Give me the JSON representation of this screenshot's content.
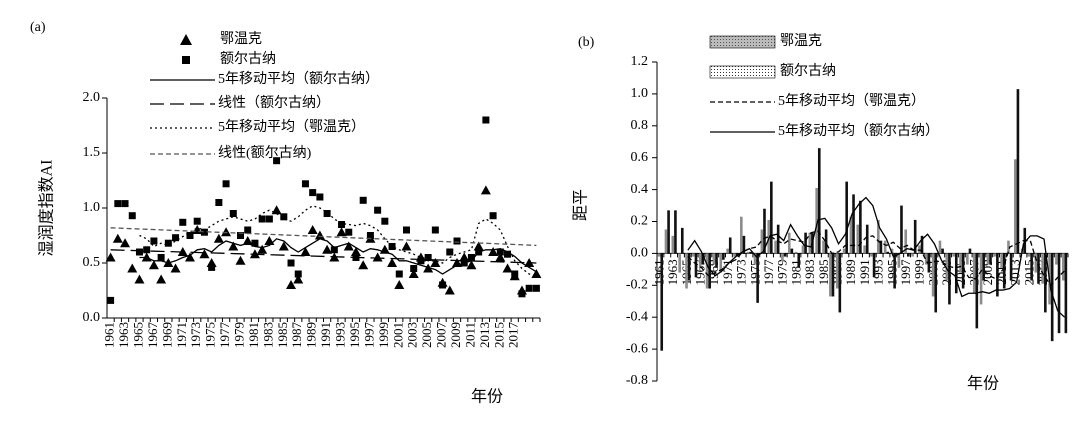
{
  "chart_data": [
    {
      "type": "scatter",
      "panel": "(a)",
      "y_label": "湿润度指数AI",
      "x_label": "年份",
      "categories": [
        "1961",
        null,
        "1963",
        null,
        "1965",
        null,
        "1967",
        null,
        "1969",
        null,
        "1971",
        null,
        "1973",
        null,
        "1975",
        null,
        "1977",
        null,
        "1979",
        null,
        "1981",
        null,
        "1983",
        null,
        "1985",
        null,
        "1987",
        null,
        "1989",
        null,
        "1991",
        null,
        "1993",
        null,
        "1995",
        null,
        "1997",
        null,
        "1999",
        null,
        "2001",
        null,
        "2003",
        null,
        "2005",
        null,
        "2007",
        null,
        "2009",
        null,
        "2011",
        null,
        "2013",
        null,
        "2015",
        null,
        "2017",
        null,
        null,
        null
      ],
      "ylim": [
        0,
        2
      ],
      "yticks": [
        {
          "value": 0,
          "label": "0.0"
        },
        0.5,
        {
          "value": 1,
          "label": "1.0"
        },
        1.5,
        {
          "value": 2,
          "label": "2.0"
        }
      ],
      "series": [
        {
          "name": "鄂温克",
          "marker": "triangle",
          "color": "#000000",
          "values": [
            0.55,
            0.72,
            0.68,
            0.45,
            0.35,
            0.55,
            0.48,
            0.35,
            0.5,
            0.45,
            0.6,
            0.55,
            0.8,
            0.58,
            0.5,
            0.72,
            0.78,
            0.65,
            0.52,
            0.7,
            0.58,
            0.62,
            0.7,
            0.98,
            0.65,
            0.3,
            0.35,
            0.6,
            0.8,
            0.75,
            0.62,
            0.55,
            0.78,
            0.65,
            0.6,
            0.48,
            0.72,
            0.55,
            0.62,
            0.5,
            0.3,
            0.65,
            0.4,
            0.55,
            0.45,
            0.5,
            0.32,
            0.25,
            0.5,
            0.55,
            0.48,
            0.65,
            1.16,
            0.6,
            0.55,
            0.45,
            0.38,
            0.25,
            0.5,
            0.4
          ]
        },
        {
          "name": "额尔古纳",
          "marker": "square",
          "color": "#000000",
          "values": [
            0.16,
            1.04,
            1.04,
            0.93,
            0.6,
            0.62,
            0.7,
            0.55,
            0.68,
            0.73,
            0.87,
            0.75,
            0.88,
            0.78,
            0.46,
            1.05,
            1.22,
            0.95,
            0.75,
            0.8,
            0.68,
            0.9,
            0.9,
            1.43,
            0.92,
            0.5,
            0.4,
            1.22,
            1.14,
            1.1,
            0.95,
            0.62,
            0.85,
            0.78,
            0.55,
            1.07,
            0.75,
            0.98,
            0.88,
            0.65,
            0.4,
            0.8,
            0.45,
            0.52,
            0.55,
            0.8,
            0.3,
            0.6,
            0.7,
            0.5,
            0.55,
            0.6,
            1.8,
            0.93,
            0.6,
            0.58,
            0.4,
            0.22,
            0.27,
            0.27
          ]
        }
      ],
      "lines": [
        {
          "name": "5年移动平均（额尔古纳）",
          "dash": "solid",
          "color": "#000000",
          "values": [
            null,
            null,
            null,
            null,
            0.55,
            0.55,
            0.52,
            0.52,
            0.5,
            0.52,
            0.55,
            0.57,
            0.62,
            0.63,
            0.6,
            0.66,
            0.7,
            0.68,
            0.66,
            0.68,
            0.65,
            0.64,
            0.66,
            0.72,
            0.7,
            0.64,
            0.6,
            0.64,
            0.68,
            0.72,
            0.7,
            0.64,
            0.66,
            0.68,
            0.64,
            0.6,
            0.63,
            0.62,
            0.6,
            0.58,
            0.52,
            0.52,
            0.5,
            0.48,
            0.46,
            0.44,
            0.4,
            0.44,
            0.48,
            0.5,
            0.52,
            0.6,
            0.62,
            0.62,
            0.63,
            0.6,
            0.56,
            0.5,
            0.46,
            0.42
          ]
        },
        {
          "name": "线性（额尔古纳）",
          "dash": "long",
          "color": "#000000",
          "start": 0.62,
          "end": 0.5
        },
        {
          "name": "5年移动平均（鄂温克）",
          "dash": "dotted",
          "color": "#000000",
          "values": [
            null,
            null,
            null,
            null,
            0.75,
            0.72,
            0.65,
            0.68,
            0.66,
            0.7,
            0.74,
            0.78,
            0.82,
            0.8,
            0.84,
            0.88,
            0.9,
            0.92,
            0.9,
            0.88,
            0.9,
            0.95,
            0.98,
            0.95,
            0.9,
            0.88,
            0.92,
            0.98,
            1.02,
            1.0,
            0.96,
            0.9,
            0.86,
            0.85,
            0.84,
            0.86,
            0.84,
            0.8,
            0.72,
            0.65,
            0.62,
            0.6,
            0.58,
            0.55,
            0.52,
            0.52,
            0.5,
            0.55,
            0.58,
            0.6,
            0.62,
            0.86,
            0.9,
            0.86,
            0.8,
            0.65,
            0.52,
            0.45,
            0.4,
            0.38
          ]
        },
        {
          "name": "线性(额尔古纳)",
          "dash": "dashed",
          "color": "#555555",
          "start": 0.82,
          "end": 0.66
        }
      ]
    },
    {
      "type": "bar",
      "panel": "(b)",
      "y_label": "距平",
      "x_label": "年份",
      "categories": [
        "1961",
        null,
        "1963",
        null,
        "1965",
        null,
        "1967",
        null,
        "1969",
        null,
        "1971",
        null,
        "1973",
        null,
        "1975",
        null,
        "1977",
        null,
        "1979",
        null,
        "1981",
        null,
        "1983",
        null,
        "1985",
        null,
        "1987",
        null,
        "1989",
        null,
        "1991",
        null,
        "1993",
        null,
        "1995",
        null,
        "1997",
        null,
        "1999",
        null,
        "2001",
        null,
        "2003",
        null,
        "2005",
        null,
        "2007",
        null,
        "2009",
        null,
        "2011",
        null,
        "2013",
        null,
        "2015",
        null,
        "2017",
        null,
        null,
        null
      ],
      "ylim": [
        -0.8,
        1.2
      ],
      "yticks": [
        -0.8,
        -0.6,
        -0.4,
        -0.2,
        {
          "value": 0,
          "label": "0.0"
        },
        0.2,
        0.4,
        0.6,
        0.8,
        {
          "value": 1,
          "label": "1.0"
        },
        1.2
      ],
      "series": [
        {
          "name": "鄂温克",
          "pattern": "shaded",
          "color": "#8c8c8c",
          "values": [
            -0.02,
            0.15,
            0.11,
            -0.12,
            -0.22,
            -0.02,
            -0.09,
            -0.22,
            -0.07,
            -0.12,
            0.03,
            -0.02,
            0.23,
            0.01,
            -0.07,
            0.15,
            0.21,
            0.08,
            -0.05,
            0.13,
            0.01,
            0.05,
            0.13,
            0.41,
            0.08,
            -0.27,
            -0.22,
            0.03,
            0.23,
            0.18,
            0.05,
            -0.02,
            0.21,
            0.08,
            0.03,
            -0.09,
            0.15,
            -0.02,
            0.05,
            -0.07,
            -0.27,
            0.08,
            -0.17,
            -0.02,
            -0.12,
            -0.07,
            -0.25,
            -0.32,
            -0.07,
            -0.02,
            -0.09,
            0.08,
            0.59,
            0.03,
            -0.02,
            -0.12,
            -0.19,
            -0.32,
            -0.07,
            -0.17
          ]
        },
        {
          "name": "额尔古纳",
          "pattern": "dotted",
          "color": "#111111",
          "values": [
            -0.61,
            0.27,
            0.27,
            0.16,
            -0.17,
            -0.15,
            -0.07,
            -0.22,
            -0.09,
            -0.04,
            0.1,
            -0.02,
            0.11,
            0.01,
            -0.31,
            0.28,
            0.45,
            0.18,
            -0.02,
            0.03,
            -0.09,
            0.13,
            0.13,
            0.66,
            0.15,
            -0.27,
            -0.37,
            0.45,
            0.37,
            0.33,
            0.18,
            -0.15,
            0.08,
            0.01,
            -0.22,
            0.3,
            -0.02,
            0.21,
            0.11,
            -0.12,
            -0.37,
            0.03,
            -0.32,
            -0.25,
            -0.22,
            0.03,
            -0.47,
            -0.17,
            -0.07,
            -0.27,
            -0.22,
            -0.17,
            1.03,
            0.16,
            -0.17,
            -0.19,
            -0.37,
            -0.55,
            -0.5,
            -0.5
          ]
        }
      ],
      "lines": [
        {
          "name": "5年移动平均（鄂温克）",
          "dash": "dashed",
          "color": "#000000",
          "values": [
            null,
            null,
            null,
            null,
            -0.02,
            -0.06,
            -0.09,
            -0.14,
            -0.12,
            -0.1,
            -0.06,
            -0.04,
            0.01,
            0.03,
            0.04,
            0.09,
            0.11,
            0.08,
            0.06,
            0.09,
            0.08,
            0.07,
            0.13,
            0.14,
            0.08,
            0,
            0.01,
            0.05,
            0.05,
            0.05,
            0.1,
            0.11,
            0.07,
            0.05,
            0.07,
            0.03,
            0.05,
            0.02,
            0.02,
            -0.06,
            -0.05,
            -0.05,
            -0.08,
            -0.09,
            -0.08,
            -0.15,
            -0.16,
            -0.1,
            -0.14,
            -0.16,
            -0.1,
            0.04,
            0.06,
            0.08,
            0.08,
            -0.06,
            -0.14,
            -0.2,
            -0.15,
            -0.11
          ]
        },
        {
          "name": "5年移动平均（额尔古纳）",
          "dash": "solid",
          "color": "#000000",
          "values": [
            null,
            null,
            null,
            null,
            0.02,
            0.08,
            0.01,
            -0.09,
            -0.14,
            -0.11,
            -0.06,
            -0.02,
            0.01,
            0.03,
            -0.02,
            0.01,
            0.11,
            0.12,
            0.08,
            0.18,
            0.11,
            0.05,
            0.04,
            0.21,
            0.22,
            0.16,
            0.06,
            0.12,
            0.25,
            0.31,
            0.35,
            0.3,
            0.16,
            0.09,
            -0.02,
            0,
            0.03,
            0.02,
            0.08,
            0.12,
            0.06,
            -0.04,
            -0.11,
            -0.14,
            -0.27,
            -0.25,
            -0.25,
            -0.24,
            -0.25,
            -0.23,
            -0.23,
            -0.22,
            -0.18,
            0.06,
            0.11,
            0.11,
            0.09,
            -0.23,
            -0.36,
            -0.4
          ]
        }
      ]
    }
  ]
}
